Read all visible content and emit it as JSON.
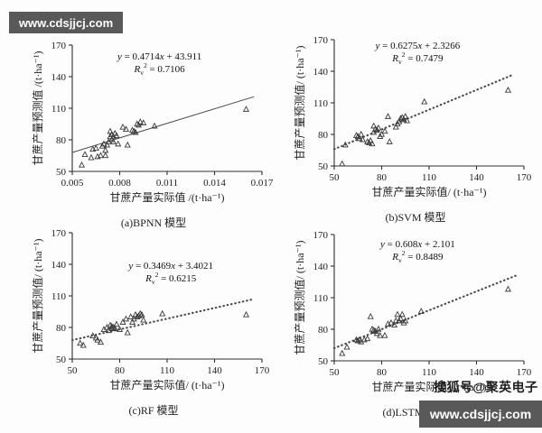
{
  "watermark_top": "www.cdsjjcj.com",
  "watermark_bottom": "www.cdsjjcj.com",
  "sohu_credit": "搜狐号@聚英电子",
  "colors": {
    "axis": "#2e2e2e",
    "marker": "#3a3a3a",
    "trendline": "#4a4a4a",
    "watermark_bg": "#595959",
    "watermark_text": "#ffffff"
  },
  "chart_data": [
    {
      "type": "scatter",
      "caption": "(a)BPNN 模型",
      "xlabel": "甘蔗产量实际值 /(t·ha⁻¹)",
      "ylabel": "甘蔗产量预测值 /(t·ha⁻¹)",
      "xlim": [
        0.005,
        0.017
      ],
      "ylim": [
        50,
        170
      ],
      "x_ticks": [
        0.005,
        0.008,
        0.011,
        0.014,
        0.017
      ],
      "x_tick_labels": [
        "0.005",
        "0.008",
        "0.011",
        "0.014",
        "0.017"
      ],
      "y_ticks": [
        50,
        80,
        110,
        140,
        170
      ],
      "y_tick_labels": [
        "50",
        "80",
        "110",
        "140",
        "170"
      ],
      "equation": {
        "slope": "0.4714",
        "intercept": "43.911",
        "r_sub": "v",
        "r2": "0.7106"
      },
      "trendline": {
        "style": "solid",
        "x1": 0.005,
        "y1": 68,
        "x2": 0.0165,
        "y2": 121
      },
      "points": [
        [
          0.0056,
          56
        ],
        [
          0.0058,
          66
        ],
        [
          0.0062,
          63
        ],
        [
          0.0063,
          71
        ],
        [
          0.0065,
          72
        ],
        [
          0.0066,
          64
        ],
        [
          0.0068,
          65
        ],
        [
          0.0069,
          74
        ],
        [
          0.007,
          76
        ],
        [
          0.0071,
          70
        ],
        [
          0.0071,
          65
        ],
        [
          0.0072,
          75
        ],
        [
          0.0073,
          78
        ],
        [
          0.0074,
          88
        ],
        [
          0.0074,
          83
        ],
        [
          0.0075,
          85
        ],
        [
          0.0075,
          80
        ],
        [
          0.0076,
          83
        ],
        [
          0.0076,
          78
        ],
        [
          0.0077,
          86
        ],
        [
          0.0078,
          84
        ],
        [
          0.0079,
          76
        ],
        [
          0.0082,
          92
        ],
        [
          0.0084,
          90
        ],
        [
          0.0085,
          75
        ],
        [
          0.0088,
          89
        ],
        [
          0.0089,
          88
        ],
        [
          0.009,
          87
        ],
        [
          0.0091,
          95
        ],
        [
          0.0092,
          94
        ],
        [
          0.0093,
          97
        ],
        [
          0.0095,
          96
        ],
        [
          0.0102,
          93
        ],
        [
          0.016,
          109
        ]
      ]
    },
    {
      "type": "scatter",
      "caption": "(b)SVM 模型",
      "xlabel": "甘蔗产量实际值/ (t·ha⁻¹)",
      "ylabel": "甘蔗产量预测值/ (t·ha⁻¹)",
      "xlim": [
        50,
        170
      ],
      "ylim": [
        50,
        170
      ],
      "x_ticks": [
        50,
        80,
        110,
        140,
        170
      ],
      "x_tick_labels": [
        "50",
        "80",
        "110",
        "140",
        "170"
      ],
      "y_ticks": [
        50,
        80,
        110,
        140,
        170
      ],
      "y_tick_labels": [
        "50",
        "80",
        "110",
        "140",
        "170"
      ],
      "equation": {
        "slope": "0.6275",
        "intercept": "2.3266",
        "r_sub": "v",
        "r2": "0.7479"
      },
      "trendline": {
        "style": "dotted",
        "x1": 50,
        "y1": 66,
        "x2": 162,
        "y2": 136
      },
      "points": [
        [
          55,
          52
        ],
        [
          57,
          70
        ],
        [
          64,
          79
        ],
        [
          65,
          78
        ],
        [
          66,
          76
        ],
        [
          67,
          80
        ],
        [
          68,
          75
        ],
        [
          71,
          73
        ],
        [
          72,
          72
        ],
        [
          73,
          74
        ],
        [
          74,
          71
        ],
        [
          75,
          88
        ],
        [
          75,
          82
        ],
        [
          76,
          85
        ],
        [
          77,
          84
        ],
        [
          78,
          86
        ],
        [
          79,
          78
        ],
        [
          80,
          80
        ],
        [
          82,
          83
        ],
        [
          84,
          97
        ],
        [
          85,
          73
        ],
        [
          89,
          87
        ],
        [
          90,
          90
        ],
        [
          91,
          92
        ],
        [
          92,
          95
        ],
        [
          93,
          96
        ],
        [
          94,
          94
        ],
        [
          95,
          97
        ],
        [
          96,
          93
        ],
        [
          107,
          111
        ],
        [
          160,
          122
        ]
      ]
    },
    {
      "type": "scatter",
      "caption": "(c)RF 模型",
      "xlabel": "甘蔗产量实际值/ (t·ha⁻¹)",
      "ylabel": "甘蔗产量预测值/ (t·ha⁻¹)",
      "xlim": [
        50,
        170
      ],
      "ylim": [
        50,
        170
      ],
      "x_ticks": [
        50,
        80,
        110,
        140,
        170
      ],
      "x_tick_labels": [
        "50",
        "80",
        "110",
        "140",
        "170"
      ],
      "y_ticks": [
        50,
        80,
        110,
        140,
        170
      ],
      "y_tick_labels": [
        "50",
        "80",
        "110",
        "140",
        "170"
      ],
      "equation": {
        "slope": "0.3469",
        "intercept": "3.4021",
        "r_sub": "v",
        "r2": "0.6215"
      },
      "trendline": {
        "style": "dotted",
        "x1": 50,
        "y1": 68,
        "x2": 165,
        "y2": 107
      },
      "points": [
        [
          55,
          65
        ],
        [
          57,
          63
        ],
        [
          63,
          72
        ],
        [
          65,
          70
        ],
        [
          66,
          68
        ],
        [
          68,
          66
        ],
        [
          70,
          78
        ],
        [
          72,
          80
        ],
        [
          73,
          77
        ],
        [
          74,
          82
        ],
        [
          75,
          81
        ],
        [
          75,
          79
        ],
        [
          76,
          80
        ],
        [
          77,
          79
        ],
        [
          78,
          83
        ],
        [
          80,
          78
        ],
        [
          82,
          85
        ],
        [
          84,
          88
        ],
        [
          85,
          75
        ],
        [
          87,
          90
        ],
        [
          88,
          85
        ],
        [
          89,
          88
        ],
        [
          90,
          92
        ],
        [
          91,
          90
        ],
        [
          92,
          91
        ],
        [
          93,
          93
        ],
        [
          94,
          92
        ],
        [
          95,
          87
        ],
        [
          107,
          93
        ],
        [
          160,
          92
        ]
      ]
    },
    {
      "type": "scatter",
      "caption": "(d)LSTM 模型",
      "xlabel": "甘蔗产量实际值/ (t·ha⁻¹)",
      "ylabel": "甘蔗产量预测值/ (t·ha⁻¹)",
      "xlim": [
        50,
        170
      ],
      "ylim": [
        50,
        170
      ],
      "x_ticks": [
        50,
        80,
        110,
        140,
        170
      ],
      "x_tick_labels": [
        "50",
        "80",
        "110",
        "140",
        "170"
      ],
      "y_ticks": [
        50,
        80,
        110,
        140,
        170
      ],
      "y_tick_labels": [
        "50",
        "80",
        "110",
        "140",
        "170"
      ],
      "equation": {
        "slope": "0.608",
        "intercept": "2.101",
        "r_sub": "v",
        "r2": "0.8489"
      },
      "trendline": {
        "style": "dotted",
        "x1": 50,
        "y1": 62,
        "x2": 165,
        "y2": 131
      },
      "points": [
        [
          55,
          57
        ],
        [
          58,
          63
        ],
        [
          64,
          70
        ],
        [
          65,
          69
        ],
        [
          66,
          70
        ],
        [
          67,
          68
        ],
        [
          69,
          70
        ],
        [
          71,
          71
        ],
        [
          73,
          92
        ],
        [
          74,
          80
        ],
        [
          75,
          79
        ],
        [
          76,
          78
        ],
        [
          77,
          76
        ],
        [
          78,
          80
        ],
        [
          79,
          74
        ],
        [
          82,
          74
        ],
        [
          84,
          85
        ],
        [
          86,
          86
        ],
        [
          88,
          84
        ],
        [
          89,
          88
        ],
        [
          90,
          94
        ],
        [
          91,
          88
        ],
        [
          92,
          90
        ],
        [
          93,
          94
        ],
        [
          94,
          86
        ],
        [
          95,
          88
        ],
        [
          105,
          97
        ],
        [
          160,
          118
        ]
      ]
    }
  ]
}
